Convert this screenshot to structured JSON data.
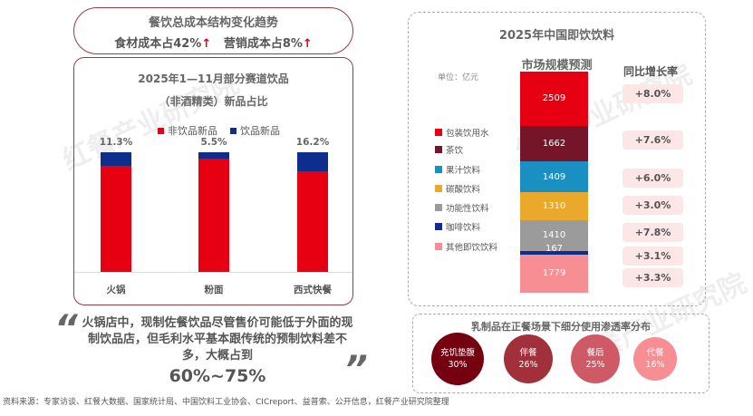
{
  "cost_box": {
    "title": "餐饮总成本结构变化趋势",
    "food_cost": "食材成本占42%",
    "marketing_cost": "营销成本占8%",
    "arrow": "↑"
  },
  "chart_data": [
    {
      "type": "bar",
      "stacked": true,
      "title": "2025年1—11月部分赛道饮品",
      "subtitle": "（非酒精类）新品占比",
      "categories": [
        "火锅",
        "粉面",
        "西式快餐"
      ],
      "series": [
        {
          "name": "非饮品新品",
          "values": [
            88.7,
            94.5,
            83.8
          ],
          "color": "#e60012"
        },
        {
          "name": "饮品新品",
          "values": [
            11.3,
            5.5,
            16.2
          ],
          "color": "#0d2e8c"
        }
      ],
      "data_labels": [
        "11.3%",
        "5.5%",
        "16.2%"
      ],
      "legend": "top",
      "ylim": [
        0,
        100
      ]
    },
    {
      "type": "bar",
      "stacked": true,
      "title": "2025年中国即饮饮料",
      "subtitle": "市场规模预测",
      "unit": "单位：亿元",
      "growth_header": "同比增长率",
      "series": [
        {
          "name": "包装饮用水",
          "value": 2509,
          "growth": "+8.0%",
          "color": "#e60012"
        },
        {
          "name": "茶饮",
          "value": 1662,
          "growth": "+7.6%",
          "color": "#76152a"
        },
        {
          "name": "果汁饮料",
          "value": 1409,
          "growth": "+6.0%",
          "color": "#1a90c2"
        },
        {
          "name": "碳酸饮料",
          "value": 1310,
          "growth": "+3.0%",
          "color": "#eaa92b"
        },
        {
          "name": "功能性饮料",
          "value": 1410,
          "growth": "+7.8%",
          "color": "#9b9b9b"
        },
        {
          "name": "咖啡饮料",
          "value": 167,
          "growth": "+3.1%",
          "color": "#0d2e8c"
        },
        {
          "name": "其他即饮饮料",
          "value": 1779,
          "growth": "+3.3%",
          "color": "#f78e94"
        }
      ],
      "legend": "left"
    },
    {
      "type": "bubble",
      "title": "乳制品在正餐场景下细分使用渗透率分布",
      "items": [
        {
          "name": "充饥垫腹",
          "value": "30%",
          "color": "#750010"
        },
        {
          "name": "伴餐",
          "value": "26%",
          "color": "#a2303b"
        },
        {
          "name": "餐后",
          "value": "25%",
          "color": "#cf5a66"
        },
        {
          "name": "代餐",
          "value": "16%",
          "color": "#f78e94"
        }
      ]
    }
  ],
  "quote": {
    "open": "“",
    "close": "”",
    "text": "火锅店中，现制佐餐饮品尽管售价可能低于外面的现制饮品店，但毛利水平基本跟传统的预制饮料差不多，大概占到",
    "highlight": "60%~75%"
  },
  "source": "资料来源：专家访谈、红餐大数据、国家统计局、中国饮料工业协会、CICreport、益普索、公开信息，红餐产业研究院整理",
  "watermark": "红餐产业研究院"
}
